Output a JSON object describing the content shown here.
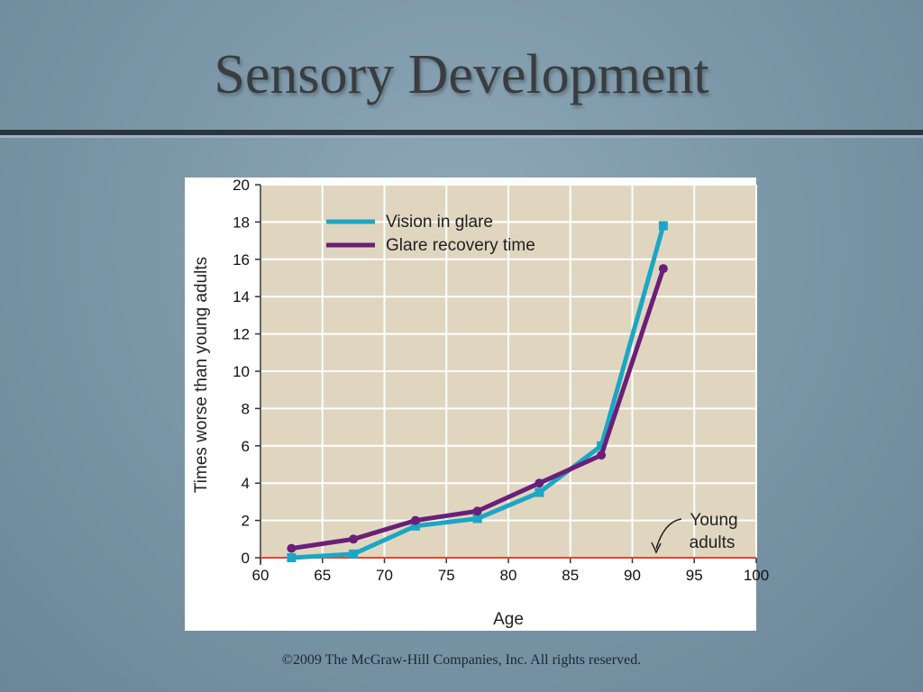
{
  "slide": {
    "title": "Sensory Development",
    "footer": "©2009 The McGraw-Hill Companies, Inc. All rights reserved."
  },
  "chart_data": {
    "type": "line",
    "title": "",
    "xlabel": "Age",
    "ylabel": "Times worse than young adults",
    "xlim": [
      60,
      100
    ],
    "ylim": [
      0,
      20
    ],
    "xticks": [
      60,
      65,
      70,
      75,
      80,
      85,
      90,
      95,
      100
    ],
    "yticks": [
      0,
      2,
      4,
      6,
      8,
      10,
      12,
      14,
      16,
      18,
      20
    ],
    "grid": true,
    "legend_position": "top-left",
    "series": [
      {
        "name": "Vision in glare",
        "color": "#1ba7c4",
        "marker": "square",
        "x": [
          62.5,
          67.5,
          72.5,
          77.5,
          82.5,
          87.5,
          92.5
        ],
        "y": [
          0,
          0.2,
          1.7,
          2.1,
          3.5,
          6.0,
          17.8
        ]
      },
      {
        "name": "Glare recovery time",
        "color": "#6a1f7a",
        "marker": "circle",
        "x": [
          62.5,
          67.5,
          72.5,
          77.5,
          82.5,
          87.5,
          92.5
        ],
        "y": [
          0.5,
          1.0,
          2.0,
          2.5,
          4.0,
          5.5,
          15.5
        ]
      }
    ],
    "reference_line": {
      "y": 0,
      "color": "#e8452c"
    },
    "annotation": {
      "text_line1": "Young",
      "text_line2": "adults",
      "x": 95,
      "y": 2
    },
    "colors": {
      "plot_background": "#e0d6c0",
      "grid": "#ffffff"
    }
  }
}
